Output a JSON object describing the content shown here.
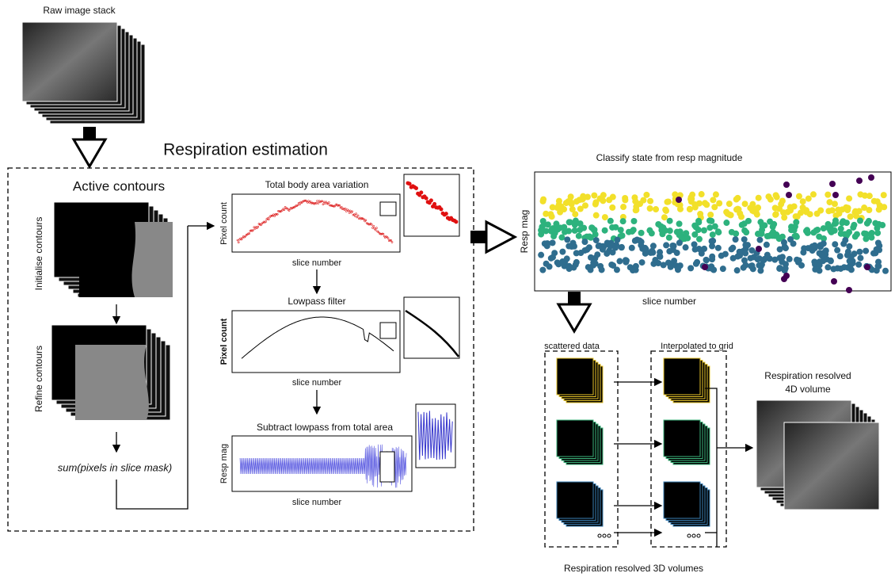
{
  "raw_stack": {
    "title": "Raw image stack"
  },
  "estimation": {
    "title": "Respiration estimation",
    "active_contours": {
      "title": "Active contours",
      "initialise": "Initialise contours",
      "refine": "Refine contours",
      "sum": "sum(pixels in slice mask)"
    },
    "plots": [
      {
        "title": "Total body area variation",
        "ylabel": "Pixel count",
        "xlabel": "slice number"
      },
      {
        "title": "Lowpass filter",
        "ylabel": "Pixel count",
        "xlabel": "slice number"
      },
      {
        "title": "Subtract lowpass from total area",
        "ylabel": "Resp mag",
        "xlabel": "slice number"
      }
    ]
  },
  "classify": {
    "title": "Classify state from resp magnitude",
    "ylabel": "Resp mag",
    "xlabel": "slice number"
  },
  "volumes": {
    "scattered": "scattered data",
    "interpolated": "Interpolated to grid",
    "caption": "Respiration resolved 3D volumes",
    "output": [
      "Respiration resolved",
      "4D volume"
    ]
  }
}
